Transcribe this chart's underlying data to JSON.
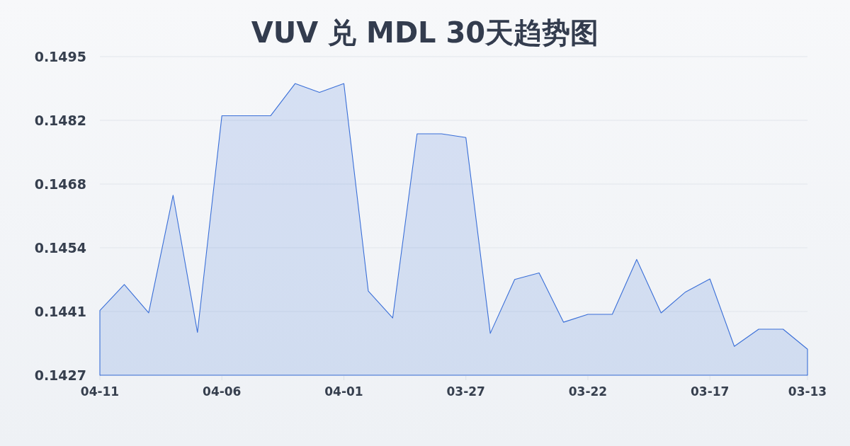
{
  "chart_data": {
    "type": "area",
    "title": "VUV 兑 MDL 30天趋势图",
    "categories": [
      "04-11",
      null,
      null,
      null,
      null,
      "04-06",
      null,
      null,
      null,
      null,
      "04-01",
      null,
      null,
      null,
      null,
      "03-27",
      null,
      null,
      null,
      null,
      "03-22",
      null,
      null,
      null,
      null,
      "03-17",
      null,
      null,
      null,
      "03-13"
    ],
    "values": [
      0.14408,
      0.14464,
      0.14403,
      0.14656,
      0.14361,
      0.14827,
      0.14827,
      0.14827,
      0.14896,
      0.14877,
      0.14896,
      0.1445,
      0.14392,
      0.14788,
      0.14788,
      0.1478,
      0.14359,
      0.14475,
      0.14489,
      0.14383,
      0.144,
      0.144,
      0.14518,
      0.14403,
      0.14448,
      0.14476,
      0.14331,
      0.14368,
      0.14368,
      0.14325
    ],
    "color": "#3a6fd8",
    "ylim": [
      0.14269,
      0.14954
    ],
    "yticks": [
      {
        "value": 0.14269,
        "label": "0.1427"
      },
      {
        "value": 0.14406,
        "label": "0.1441"
      },
      {
        "value": 0.14543,
        "label": "0.1454"
      },
      {
        "value": 0.1468,
        "label": "0.1468"
      },
      {
        "value": 0.14817,
        "label": "0.1482"
      },
      {
        "value": 0.14954,
        "label": "0.1495"
      }
    ],
    "grid": "y"
  }
}
